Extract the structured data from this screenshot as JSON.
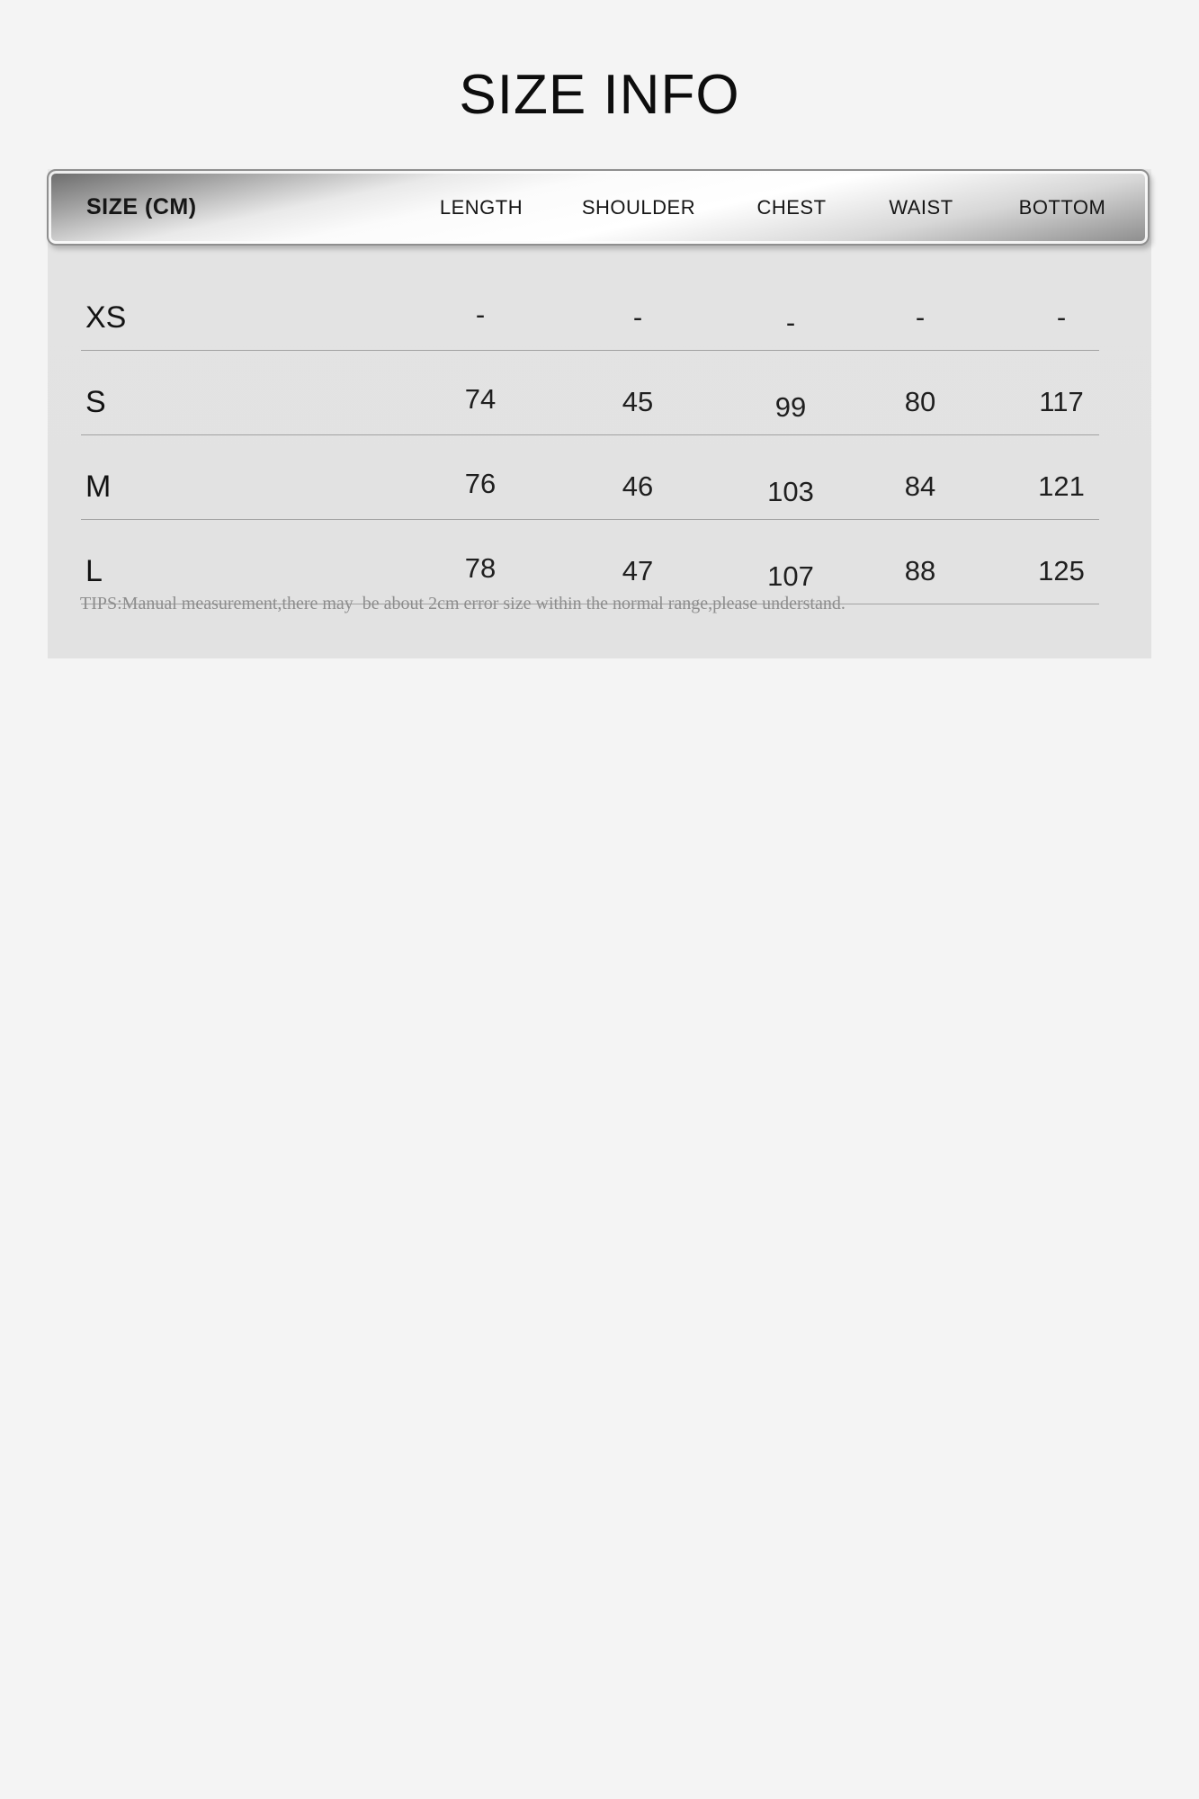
{
  "header": {
    "title": "SIZE INFO"
  },
  "table": {
    "unit_label": "SIZE (CM)",
    "columns": [
      "LENGTH",
      "SHOULDER",
      "CHEST",
      "WAIST",
      "BOTTOM"
    ],
    "rows": [
      {
        "size": "XS",
        "values": [
          "-",
          "-",
          "-",
          "-",
          "-"
        ]
      },
      {
        "size": "S",
        "values": [
          "74",
          "45",
          "99",
          "80",
          "117"
        ]
      },
      {
        "size": "M",
        "values": [
          "76",
          "46",
          "103",
          "84",
          "121"
        ]
      },
      {
        "size": "L",
        "values": [
          "78",
          "47",
          "107",
          "88",
          "125"
        ]
      }
    ],
    "tips": "TIPS:Manual measurement,there may  be about 2cm error size within the normal range,please understand."
  },
  "chart_data": {
    "type": "table",
    "title": "SIZE INFO",
    "columns": [
      "SIZE (CM)",
      "LENGTH",
      "SHOULDER",
      "CHEST",
      "WAIST",
      "BOTTOM"
    ],
    "rows": [
      [
        "XS",
        "-",
        "-",
        "-",
        "-",
        "-"
      ],
      [
        "S",
        74,
        45,
        99,
        80,
        117
      ],
      [
        "M",
        76,
        46,
        103,
        84,
        121
      ],
      [
        "L",
        78,
        47,
        107,
        88,
        125
      ]
    ],
    "note": "TIPS:Manual measurement,there may  be about 2cm error size within the normal range,please understand."
  },
  "colors": {
    "page_background": "#f4f4f4",
    "panel_background": "#e3e3e3",
    "divider": "#a2a2a2",
    "text": "#1b1b1b",
    "tips_text": "#8d8d8d",
    "metal_dark": "#696969",
    "metal_light": "#ffffff",
    "metal_edge": "#8f8f8f"
  }
}
